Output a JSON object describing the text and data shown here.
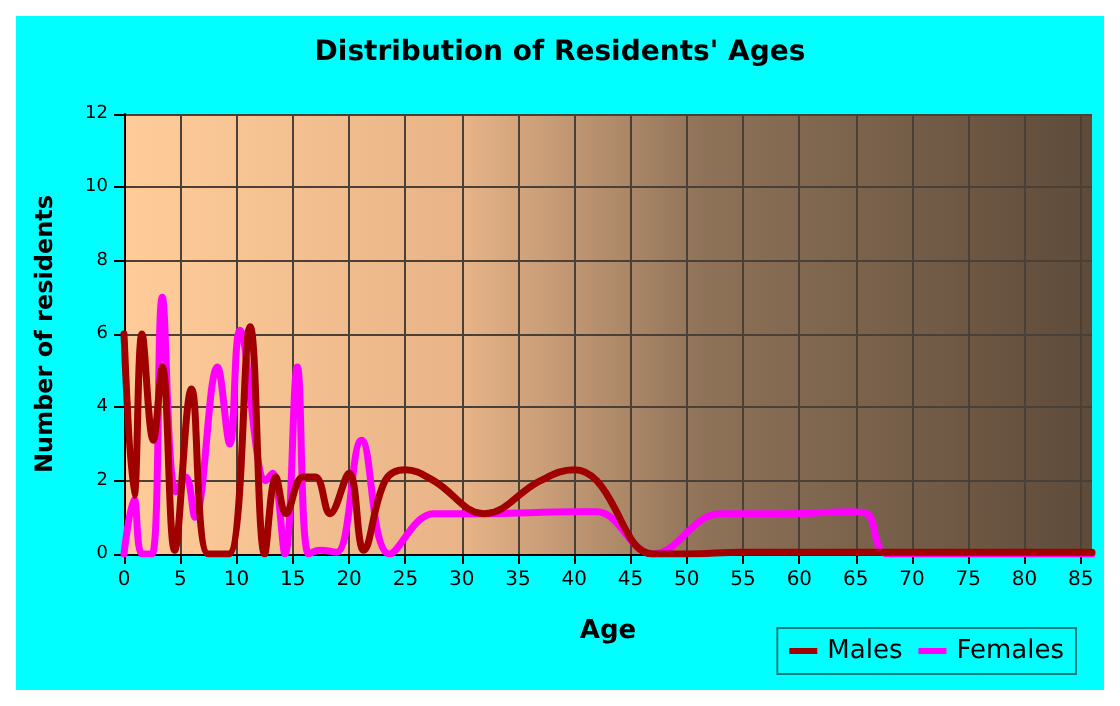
{
  "chart_data": {
    "type": "line",
    "title": "Distribution of Residents' Ages",
    "xlabel": "Age",
    "ylabel": "Number of residents",
    "xlim": [
      0,
      86
    ],
    "xticks": [
      0,
      5,
      10,
      15,
      20,
      25,
      30,
      35,
      40,
      45,
      50,
      55,
      60,
      65,
      70,
      75,
      80,
      85
    ],
    "ylim": [
      0,
      12
    ],
    "yticks": [
      0,
      2,
      4,
      6,
      8,
      10,
      12
    ],
    "grid": true,
    "legend": "bottom right",
    "marker": "none",
    "line_style": "solid",
    "series": [
      {
        "name": "Males",
        "color": "#a00000",
        "x": [
          0,
          0.9,
          1.6,
          2.6,
          3.4,
          4.5,
          6,
          7.5,
          9.3,
          11.2,
          12.5,
          13.5,
          14.4,
          15.9,
          17,
          18.3,
          20,
          21.3,
          23.2,
          25,
          27.5,
          32,
          37,
          40,
          42,
          47,
          50,
          55,
          86
        ],
        "values": [
          6,
          1.6,
          6,
          3.1,
          5.1,
          0.1,
          4.5,
          0,
          0,
          6.2,
          0,
          2.1,
          1.1,
          2.1,
          2.1,
          1.1,
          2.2,
          0.1,
          2,
          2.3,
          2,
          1.1,
          2,
          2.3,
          2,
          0,
          0,
          0.05,
          0.05
        ]
      },
      {
        "name": "Females",
        "color": "#ff00ff",
        "x": [
          0,
          0.9,
          1.6,
          2.5,
          3.4,
          4.6,
          5.5,
          6.3,
          8.3,
          9.4,
          10.3,
          12.6,
          13.2,
          14.3,
          15.4,
          16.4,
          17.4,
          18.9,
          21.1,
          23.6,
          27.5,
          32,
          40,
          42,
          47,
          53,
          58.8,
          64.6,
          66,
          67.9,
          86
        ],
        "values": [
          0,
          1.5,
          0,
          0,
          7,
          1.7,
          2.1,
          1,
          5.1,
          3,
          6.1,
          2,
          2.2,
          0,
          5.1,
          0,
          0.1,
          0.05,
          3.1,
          0,
          1.1,
          1.1,
          1.15,
          1.15,
          0,
          1.1,
          1.1,
          1.15,
          1.1,
          0,
          0
        ]
      }
    ]
  }
}
